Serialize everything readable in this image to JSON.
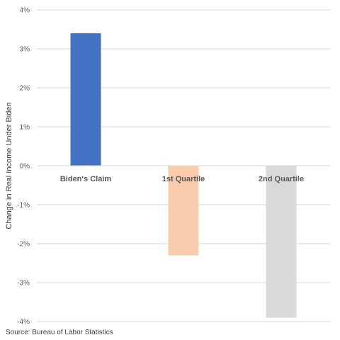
{
  "chart_data": {
    "type": "bar",
    "categories": [
      "Biden's Claim",
      "1st Quartile",
      "2nd Quartile"
    ],
    "values": [
      3.4,
      -2.3,
      -3.9
    ],
    "unit": "%",
    "colors": [
      "#4472C4",
      "#F8CBAD",
      "#D9D9D9"
    ],
    "ylabel": "Change in Real Income Under Biden",
    "ylim": [
      -4,
      4
    ],
    "yticks": [
      4,
      3,
      2,
      1,
      0,
      -1,
      -2,
      -3,
      -4
    ],
    "ytick_labels": [
      "4%",
      "3%",
      "2%",
      "1%",
      "0%",
      "-1%",
      "-2%",
      "-3%",
      "-4%"
    ],
    "grid": true,
    "legend": "none"
  },
  "source": "Source: Bureau of Labor Statistics"
}
